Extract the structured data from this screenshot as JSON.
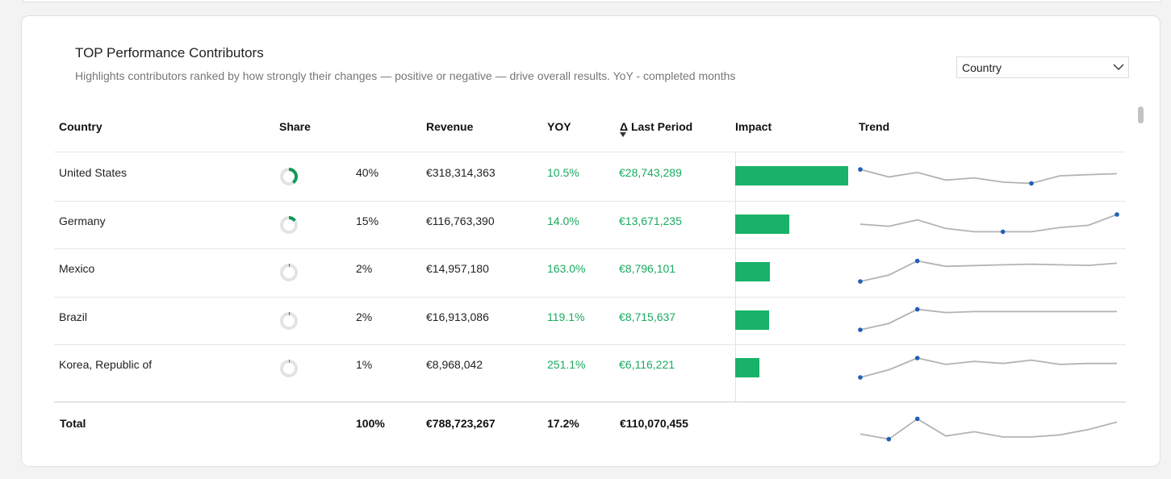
{
  "panel": {
    "title": "TOP Performance Contributors",
    "subtitle": "Highlights contributors ranked by how strongly their changes — positive or negative — drive overall results. YoY - completed months"
  },
  "dimension_select": {
    "value": "Country",
    "icon": "chevron-down-icon"
  },
  "columns": {
    "country": "Country",
    "share": "Share",
    "revenue": "Revenue",
    "yoy": "YOY",
    "last_period": "Δ Last Period",
    "impact": "Impact",
    "trend": "Trend"
  },
  "sort": {
    "column": "last_period",
    "direction": "descending",
    "icon": "sort-down-icon"
  },
  "colors": {
    "positive": "#1aaa5e",
    "impact_bar": "#18b368",
    "donut_fill": "#0f9a55",
    "donut_track": "#e3e3e5",
    "trend_line": "#b3b3b3",
    "trend_marker": "#1f5fb8"
  },
  "rows": [
    {
      "country": "United States",
      "share": 0.4,
      "share_label": "40%",
      "revenue": "€318,314,363",
      "yoy": "10.5%",
      "last_period": "€28,743,289",
      "impact": 28743289,
      "trend": [
        0.83,
        0.44,
        0.67,
        0.28,
        0.39,
        0.17,
        0.11,
        0.5,
        0.56,
        0.61
      ],
      "trend_markers": [
        0,
        6
      ]
    },
    {
      "country": "Germany",
      "share": 0.15,
      "share_label": "15%",
      "revenue": "€116,763,390",
      "yoy": "14.0%",
      "last_period": "€13,671,235",
      "impact": 13671235,
      "trend": [
        0.5,
        0.39,
        0.72,
        0.28,
        0.11,
        0.11,
        0.11,
        0.33,
        0.44,
        1.0
      ],
      "trend_markers": [
        5,
        9
      ]
    },
    {
      "country": "Mexico",
      "share": 0.02,
      "share_label": "2%",
      "revenue": "€14,957,180",
      "yoy": "163.0%",
      "last_period": "€8,796,101",
      "impact": 8796101,
      "trend": [
        0.0,
        0.33,
        1.06,
        0.78,
        0.82,
        0.86,
        0.89,
        0.86,
        0.83,
        0.94
      ],
      "trend_markers": [
        0,
        2
      ]
    },
    {
      "country": "Brazil",
      "share": 0.02,
      "share_label": "2%",
      "revenue": "€16,913,086",
      "yoy": "119.1%",
      "last_period": "€8,715,637",
      "impact": 8715637,
      "trend": [
        0.0,
        0.33,
        1.06,
        0.89,
        0.94,
        0.94,
        0.94,
        0.94,
        0.94,
        0.94
      ],
      "trend_markers": [
        0,
        2
      ]
    },
    {
      "country": "Korea, Republic of",
      "share": 0.01,
      "share_label": "1%",
      "revenue": "€8,968,042",
      "yoy": "251.1%",
      "last_period": "€6,116,221",
      "impact": 6116221,
      "trend": [
        0.0,
        0.39,
        1.0,
        0.67,
        0.83,
        0.72,
        0.89,
        0.67,
        0.72,
        0.72
      ],
      "trend_markers": [
        0,
        2
      ]
    }
  ],
  "total": {
    "label": "Total",
    "share_label": "100%",
    "revenue": "€788,723,267",
    "yoy": "17.2%",
    "last_period": "€110,070,455",
    "trend": [
      0.33,
      0.06,
      1.11,
      0.22,
      0.44,
      0.17,
      0.17,
      0.28,
      0.56,
      0.94
    ],
    "trend_markers": [
      1,
      2
    ]
  }
}
